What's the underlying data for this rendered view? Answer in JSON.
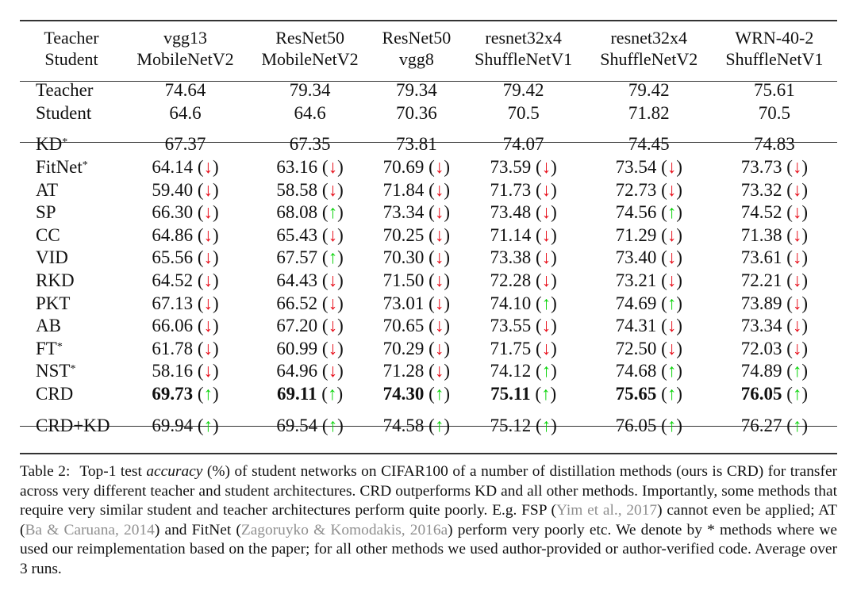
{
  "table": {
    "header_label": [
      "Teacher",
      "Student"
    ],
    "columns": [
      {
        "teacher": "vgg13",
        "student": "MobileNetV2"
      },
      {
        "teacher": "ResNet50",
        "student": "MobileNetV2"
      },
      {
        "teacher": "ResNet50",
        "student": "vgg8"
      },
      {
        "teacher": "resnet32x4",
        "student": "ShuffleNetV1"
      },
      {
        "teacher": "resnet32x4",
        "student": "ShuffleNetV2"
      },
      {
        "teacher": "WRN-40-2",
        "student": "ShuffleNetV1"
      }
    ],
    "baselines": [
      {
        "label": "Teacher",
        "values": [
          "74.64",
          "79.34",
          "79.34",
          "79.42",
          "79.42",
          "75.61"
        ]
      },
      {
        "label": "Student",
        "values": [
          "64.6",
          "64.6",
          "70.36",
          "70.5",
          "71.82",
          "70.5"
        ]
      }
    ],
    "methods": [
      {
        "label": "KD",
        "star": "*",
        "values": [
          "67.37",
          "67.35",
          "73.81",
          "74.07",
          "74.45",
          "74.83"
        ],
        "arrows": [
          "",
          "",
          "",
          "",
          "",
          ""
        ]
      },
      {
        "label": "FitNet",
        "star": "*",
        "values": [
          "64.14",
          "63.16",
          "70.69",
          "73.59",
          "73.54",
          "73.73"
        ],
        "arrows": [
          "down",
          "down",
          "down",
          "down",
          "down",
          "down"
        ]
      },
      {
        "label": "AT",
        "star": "",
        "values": [
          "59.40",
          "58.58",
          "71.84",
          "71.73",
          "72.73",
          "73.32"
        ],
        "arrows": [
          "down",
          "down",
          "down",
          "down",
          "down",
          "down"
        ]
      },
      {
        "label": "SP",
        "star": "",
        "values": [
          "66.30",
          "68.08",
          "73.34",
          "73.48",
          "74.56",
          "74.52"
        ],
        "arrows": [
          "down",
          "up",
          "down",
          "down",
          "up",
          "down"
        ]
      },
      {
        "label": "CC",
        "star": "",
        "values": [
          "64.86",
          "65.43",
          "70.25",
          "71.14",
          "71.29",
          "71.38"
        ],
        "arrows": [
          "down",
          "down",
          "down",
          "down",
          "down",
          "down"
        ]
      },
      {
        "label": "VID",
        "star": "",
        "values": [
          "65.56",
          "67.57",
          "70.30",
          "73.38",
          "73.40",
          "73.61"
        ],
        "arrows": [
          "down",
          "up",
          "down",
          "down",
          "down",
          "down"
        ]
      },
      {
        "label": "RKD",
        "star": "",
        "values": [
          "64.52",
          "64.43",
          "71.50",
          "72.28",
          "73.21",
          "72.21"
        ],
        "arrows": [
          "down",
          "down",
          "down",
          "down",
          "down",
          "down"
        ]
      },
      {
        "label": "PKT",
        "star": "",
        "values": [
          "67.13",
          "66.52",
          "73.01",
          "74.10",
          "74.69",
          "73.89"
        ],
        "arrows": [
          "down",
          "down",
          "down",
          "up",
          "up",
          "down"
        ]
      },
      {
        "label": "AB",
        "star": "",
        "values": [
          "66.06",
          "67.20",
          "70.65",
          "73.55",
          "74.31",
          "73.34"
        ],
        "arrows": [
          "down",
          "down",
          "down",
          "down",
          "down",
          "down"
        ]
      },
      {
        "label": "FT",
        "star": "*",
        "values": [
          "61.78",
          "60.99",
          "70.29",
          "71.75",
          "72.50",
          "72.03"
        ],
        "arrows": [
          "down",
          "down",
          "down",
          "down",
          "down",
          "down"
        ]
      },
      {
        "label": "NST",
        "star": "*",
        "values": [
          "58.16",
          "64.96",
          "71.28",
          "74.12",
          "74.68",
          "74.89"
        ],
        "arrows": [
          "down",
          "down",
          "down",
          "up",
          "up",
          "up"
        ]
      },
      {
        "label": "CRD",
        "star": "",
        "bold": true,
        "values": [
          "69.73",
          "69.11",
          "74.30",
          "75.11",
          "75.65",
          "76.05"
        ],
        "arrows": [
          "up",
          "up",
          "up",
          "up",
          "up",
          "up"
        ]
      }
    ],
    "combined": [
      {
        "label": "CRD+KD",
        "star": "",
        "values": [
          "69.94",
          "69.54",
          "74.58",
          "75.12",
          "76.05",
          "76.27"
        ],
        "arrows": [
          "up",
          "up",
          "up",
          "up",
          "up",
          "up"
        ]
      }
    ]
  },
  "arrow_glyphs": {
    "up": "↑",
    "down": "↓"
  },
  "colors": {
    "down": "#e8101c",
    "up": "#0bd40b",
    "citation": "#8f8f8f"
  },
  "caption": {
    "label": "Table 2:",
    "t1": "Top-1 test ",
    "t2": "accuracy",
    "t3": " (%) of student networks on CIFAR100 of a number of distillation methods (ours is CRD) for transfer across very different teacher and student architectures. CRD outperforms KD and all other methods. Importantly, some methods that require very similar student and teacher architectures perform quite poorly. E.g. FSP (",
    "c1": "Yim et al., 2017",
    "t4": ") cannot even be applied; AT (",
    "c2": "Ba & Caruana, 2014",
    "t5": ") and FitNet (",
    "c3": "Zagoruyko & Komodakis, 2016a",
    "t6": ") perform very poorly etc. We denote by * methods where we used our reimplementation based on the paper; for all other methods we used author-provided or author-verified code. Average over 3 runs."
  }
}
